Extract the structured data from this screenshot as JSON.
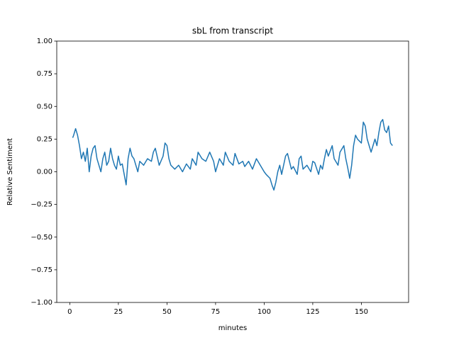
{
  "chart_data": {
    "type": "line",
    "title": "sbL from transcript",
    "xlabel": "minutes",
    "ylabel": "Relative Sentiment",
    "color": "#1f77b4",
    "x": [
      1.5,
      2,
      3,
      4,
      5,
      6,
      7,
      8,
      9,
      10,
      11,
      12,
      13,
      14,
      15,
      16,
      17,
      18,
      19,
      20,
      21,
      22,
      23,
      24,
      25,
      26,
      27,
      28,
      29,
      30,
      31,
      32,
      33,
      34,
      35,
      36,
      38,
      40,
      42,
      43,
      44,
      46,
      48,
      49,
      50,
      51,
      52,
      54,
      56,
      58,
      60,
      62,
      63,
      65,
      66,
      68,
      70,
      72,
      74,
      75,
      77,
      79,
      80,
      82,
      84,
      85,
      87,
      89,
      90,
      92,
      94,
      96,
      98,
      100,
      101,
      103,
      104,
      105,
      106,
      107,
      108,
      109,
      111,
      112,
      113,
      114,
      115,
      117,
      118,
      119,
      120,
      122,
      124,
      125,
      126,
      128,
      129,
      130,
      131,
      132,
      133,
      135,
      136,
      138,
      139,
      141,
      142,
      143,
      144,
      145,
      146,
      147,
      148,
      150,
      151,
      152,
      153,
      154,
      155,
      156,
      157,
      158,
      159,
      160,
      161,
      162,
      163,
      164,
      165,
      166
    ],
    "values": [
      0.26,
      0.28,
      0.33,
      0.28,
      0.2,
      0.1,
      0.15,
      0.08,
      0.18,
      0.0,
      0.12,
      0.18,
      0.2,
      0.1,
      0.05,
      0.0,
      0.1,
      0.15,
      0.05,
      0.08,
      0.18,
      0.1,
      0.05,
      0.02,
      0.12,
      0.05,
      0.06,
      -0.02,
      -0.1,
      0.1,
      0.18,
      0.12,
      0.1,
      0.05,
      0.0,
      0.08,
      0.05,
      0.1,
      0.08,
      0.15,
      0.18,
      0.05,
      0.12,
      0.22,
      0.2,
      0.1,
      0.05,
      0.02,
      0.05,
      0.0,
      0.06,
      0.02,
      0.1,
      0.05,
      0.15,
      0.1,
      0.08,
      0.15,
      0.08,
      0.0,
      0.1,
      0.05,
      0.15,
      0.08,
      0.05,
      0.14,
      0.06,
      0.08,
      0.04,
      0.08,
      0.02,
      0.1,
      0.05,
      0.0,
      -0.02,
      -0.05,
      -0.1,
      -0.14,
      -0.08,
      0.0,
      0.05,
      -0.02,
      0.12,
      0.14,
      0.08,
      0.02,
      0.04,
      -0.02,
      0.1,
      0.12,
      0.02,
      0.05,
      0.0,
      0.08,
      0.07,
      -0.02,
      0.05,
      0.02,
      0.1,
      0.17,
      0.12,
      0.2,
      0.1,
      0.05,
      0.15,
      0.2,
      0.1,
      0.03,
      -0.05,
      0.05,
      0.2,
      0.28,
      0.25,
      0.22,
      0.38,
      0.35,
      0.25,
      0.2,
      0.15,
      0.2,
      0.25,
      0.2,
      0.3,
      0.38,
      0.4,
      0.32,
      0.3,
      0.35,
      0.22,
      0.2
    ],
    "xlim": [
      -6.7,
      174.3
    ],
    "xticks": [
      0,
      25,
      50,
      75,
      100,
      125,
      150
    ],
    "ylim": [
      -1,
      1
    ],
    "yticks": [
      {
        "value": -1,
        "label": "−1.00"
      },
      {
        "value": -0.75,
        "label": "−0.75"
      },
      {
        "value": -0.5,
        "label": "−0.50"
      },
      {
        "value": -0.25,
        "label": "−0.25"
      },
      {
        "value": 0,
        "label": "0.00"
      },
      {
        "value": 0.25,
        "label": "0.25"
      },
      {
        "value": 0.5,
        "label": "0.50"
      },
      {
        "value": 0.75,
        "label": "0.75"
      },
      {
        "value": 1,
        "label": "1.00"
      }
    ],
    "grid": false
  }
}
